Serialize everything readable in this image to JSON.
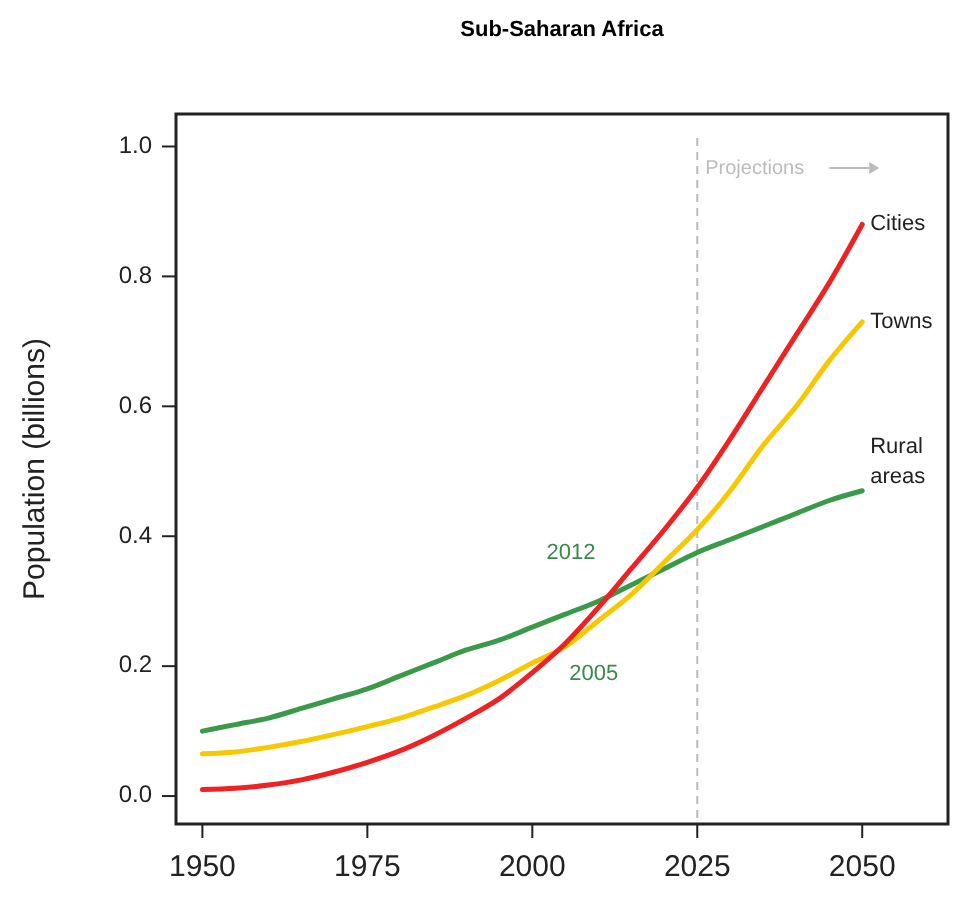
{
  "chart_data": {
    "type": "line",
    "title": "Sub‑Saharan Africa",
    "ylabel": "Population (billions)",
    "x": [
      1950,
      1955,
      1960,
      1965,
      1970,
      1975,
      1980,
      1985,
      1990,
      1995,
      2000,
      2005,
      2010,
      2015,
      2020,
      2025,
      2030,
      2035,
      2040,
      2045,
      2050
    ],
    "series": [
      {
        "name": "Rural areas",
        "color": "#3a9a4a",
        "values": [
          0.1,
          0.11,
          0.12,
          0.135,
          0.15,
          0.165,
          0.185,
          0.205,
          0.225,
          0.24,
          0.26,
          0.28,
          0.3,
          0.325,
          0.35,
          0.375,
          0.395,
          0.415,
          0.435,
          0.455,
          0.47
        ]
      },
      {
        "name": "Towns",
        "color": "#f5c800",
        "values": [
          0.065,
          0.068,
          0.075,
          0.084,
          0.095,
          0.107,
          0.12,
          0.137,
          0.155,
          0.178,
          0.205,
          0.23,
          0.27,
          0.31,
          0.36,
          0.41,
          0.47,
          0.54,
          0.6,
          0.67,
          0.73
        ]
      },
      {
        "name": "Cities",
        "color": "#ee2222",
        "values": [
          0.01,
          0.012,
          0.017,
          0.025,
          0.037,
          0.052,
          0.07,
          0.093,
          0.12,
          0.15,
          0.19,
          0.235,
          0.29,
          0.35,
          0.41,
          0.475,
          0.55,
          0.63,
          0.71,
          0.79,
          0.88
        ]
      }
    ],
    "xlim": [
      1946,
      2063
    ],
    "ylim": [
      -0.043,
      1.05
    ],
    "xticks": [
      1950,
      1975,
      2000,
      2025,
      2050
    ],
    "yticks": [
      {
        "value": 0,
        "label": "0.0"
      },
      0.2,
      0.4,
      0.6,
      0.8,
      {
        "value": 1,
        "label": "1.0"
      }
    ],
    "ref_lines": [
      {
        "axis": "x",
        "value": 2025,
        "label": "Projections",
        "color": "#bbbbbb",
        "line_style": "dashed"
      }
    ],
    "annotations": [
      {
        "text": "2012",
        "x": 2012,
        "y": 0.31
      },
      {
        "text": "2005",
        "x": 2005,
        "y": 0.21
      }
    ],
    "grid": false,
    "marker": "none",
    "line_style": "solid"
  }
}
